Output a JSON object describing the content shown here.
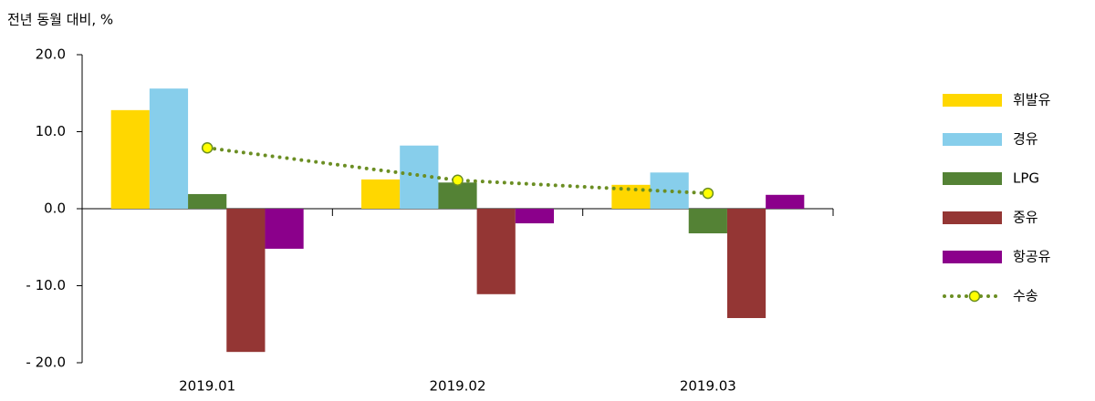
{
  "chart_data": {
    "type": "bar",
    "y_axis_label": "전년 동월 대비, %",
    "categories": [
      "2019.01",
      "2019.02",
      "2019.03"
    ],
    "series": [
      {
        "name": "휘발유",
        "color": "#FFD700",
        "values": [
          12.8,
          3.8,
          3.1
        ]
      },
      {
        "name": "경유",
        "color": "#87CEEB",
        "values": [
          15.6,
          8.2,
          4.7
        ]
      },
      {
        "name": "LPG",
        "color": "#548235",
        "values": [
          1.9,
          3.4,
          -3.2
        ]
      },
      {
        "name": "중유",
        "color": "#943634",
        "values": [
          -18.6,
          -11.1,
          -14.2
        ]
      },
      {
        "name": "항공유",
        "color": "#8B008B",
        "values": [
          -5.2,
          -1.9,
          1.8
        ]
      },
      {
        "name": "수송",
        "color": "#6B8E23",
        "marker_color": "#FFFF00",
        "type": "line",
        "values": [
          7.9,
          3.7,
          2.0
        ]
      }
    ],
    "ylim": [
      -20,
      20
    ],
    "yticks": [
      {
        "value": -20,
        "label": "- 20.0"
      },
      {
        "value": -10,
        "label": "- 10.0"
      },
      {
        "value": 0,
        "label": "0.0"
      },
      {
        "value": 10,
        "label": "10.0"
      },
      {
        "value": 20,
        "label": "20.0"
      }
    ],
    "legend": "right"
  }
}
